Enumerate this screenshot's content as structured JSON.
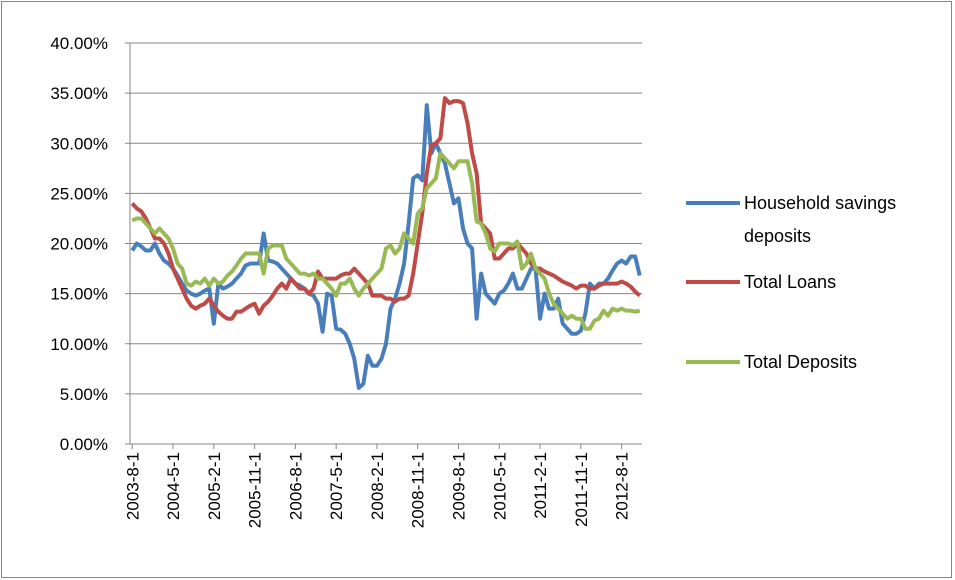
{
  "chart_data": {
    "type": "line",
    "categories": [
      "2003-8-1",
      null,
      null,
      null,
      null,
      null,
      null,
      null,
      null,
      "2004-5-1",
      null,
      null,
      null,
      null,
      null,
      null,
      null,
      null,
      "2005-2-1",
      null,
      null,
      null,
      null,
      null,
      null,
      null,
      null,
      "2005-11-1",
      null,
      null,
      null,
      null,
      null,
      null,
      null,
      null,
      "2006-8-1",
      null,
      null,
      null,
      null,
      null,
      null,
      null,
      null,
      "2007-5-1",
      null,
      null,
      null,
      null,
      null,
      null,
      null,
      null,
      "2008-2-1",
      null,
      null,
      null,
      null,
      null,
      null,
      null,
      null,
      "2008-11-1",
      null,
      null,
      null,
      null,
      null,
      null,
      null,
      null,
      "2009-8-1",
      null,
      null,
      null,
      null,
      null,
      null,
      null,
      null,
      "2010-5-1",
      null,
      null,
      null,
      null,
      null,
      null,
      null,
      null,
      "2011-2-1",
      null,
      null,
      null,
      null,
      null,
      null,
      null,
      null,
      "2011-11-1",
      null,
      null,
      null,
      null,
      null,
      null,
      null,
      null,
      "2012-8-1",
      null,
      null,
      null,
      null
    ],
    "series": [
      {
        "name": "Household savings deposits",
        "color": "#4a7ebb",
        "values": [
          19.3,
          20,
          19.7,
          19.3,
          19.3,
          20,
          19,
          18.3,
          18,
          17.5,
          16.8,
          16,
          15.3,
          15,
          14.8,
          15,
          15.3,
          15.5,
          12,
          16,
          15.5,
          15.7,
          16,
          16.5,
          17,
          17.8,
          18,
          18,
          18,
          21,
          18.3,
          18.2,
          18,
          17.5,
          17,
          16.5,
          16,
          15.8,
          15.5,
          15,
          14.8,
          14,
          11.2,
          15,
          14.8,
          11.5,
          11.4,
          11,
          10,
          8.5,
          5.6,
          6,
          8.8,
          7.8,
          7.8,
          8.5,
          10,
          13.5,
          14.5,
          16,
          18,
          22,
          26.5,
          26.8,
          26.3,
          33.8,
          29,
          30,
          29,
          28,
          26,
          24,
          24.5,
          21.5,
          20,
          19.5,
          12.5,
          17,
          15,
          14.5,
          14,
          15,
          15.3,
          16,
          17,
          15.5,
          15.5,
          16.5,
          17.5,
          17.5,
          12.5,
          15,
          13.5,
          13.5,
          14.5,
          12,
          11.5,
          11,
          11,
          11.3,
          13,
          16,
          15.5,
          16,
          16,
          16.5,
          17.3,
          18,
          18.3,
          18,
          18.7,
          18.7,
          16.8
        ]
      },
      {
        "name": "Total Loans",
        "color": "#be4b48",
        "values": [
          24,
          23.5,
          23.2,
          22.5,
          21.5,
          20.5,
          20.5,
          20,
          19,
          17.5,
          16.5,
          15.5,
          14.5,
          13.8,
          13.5,
          13.8,
          14,
          14.5,
          13.8,
          13.2,
          12.8,
          12.5,
          12.5,
          13.2,
          13.2,
          13.5,
          13.8,
          14,
          13,
          13.8,
          14.2,
          14.8,
          15.5,
          16,
          15.5,
          16.5,
          16,
          15.5,
          15.5,
          15,
          15.5,
          17.2,
          16.5,
          16.5,
          16.5,
          16.5,
          16.8,
          17,
          17,
          17.5,
          17,
          16.5,
          16,
          14.8,
          14.8,
          14.8,
          14.5,
          14.5,
          14.2,
          14.5,
          14.5,
          14.8,
          17,
          20,
          23,
          27,
          29.8,
          30,
          30.5,
          34.5,
          34,
          34.2,
          34.2,
          34,
          32,
          29,
          27,
          22,
          21.5,
          21,
          18.5,
          18.5,
          19,
          19.5,
          19.5,
          20,
          19.5,
          19,
          18,
          17.5,
          17.5,
          17.2,
          17,
          16.8,
          16.5,
          16.2,
          16,
          15.8,
          15.5,
          15.8,
          15.8,
          15.5,
          15.5,
          15.8,
          16,
          16,
          16,
          16,
          16.2,
          16,
          15.7,
          15.2,
          14.8
        ]
      },
      {
        "name": "Total Deposits",
        "color": "#98b954",
        "values": [
          22.3,
          22.5,
          22.5,
          22,
          21.5,
          21,
          21.5,
          21,
          20.5,
          19.5,
          18,
          17.5,
          16,
          15.8,
          16.2,
          16,
          16.5,
          15.8,
          16.5,
          16,
          16.2,
          16.8,
          17.2,
          17.8,
          18.5,
          19,
          19,
          19,
          19,
          17,
          19.5,
          19.8,
          19.8,
          19.8,
          18.5,
          18,
          17.5,
          17,
          17,
          16.8,
          17,
          16.5,
          16.5,
          16,
          15.5,
          14.8,
          16,
          16,
          16.5,
          15.5,
          14.8,
          15.5,
          16,
          16.5,
          17,
          17.5,
          19.5,
          19.8,
          19,
          19.5,
          21,
          20.5,
          20,
          23,
          23.5,
          25.5,
          26,
          26.5,
          29,
          28.5,
          28,
          27.5,
          28.2,
          28.2,
          28.2,
          26,
          22.2,
          22,
          21,
          19.5,
          19.2,
          20,
          20,
          20,
          19.8,
          20.2,
          17.5,
          18,
          19,
          17.5,
          17,
          16.5,
          15,
          14,
          13.5,
          13,
          12.5,
          12.8,
          12.5,
          12.5,
          11.5,
          11.5,
          12.3,
          12.5,
          13.3,
          12.8,
          13.5,
          13.3,
          13.5,
          13.3,
          13.3,
          13.2,
          13.3
        ]
      }
    ],
    "ylim": [
      0,
      40
    ],
    "yticks": [
      {
        "value": 0,
        "label": "0.00%"
      },
      {
        "value": 5,
        "label": "5.00%"
      },
      {
        "value": 10,
        "label": "10.00%"
      },
      {
        "value": 15,
        "label": "15.00%"
      },
      {
        "value": 20,
        "label": "20.00%"
      },
      {
        "value": 25,
        "label": "25.00%"
      },
      {
        "value": 30,
        "label": "30.00%"
      },
      {
        "value": 35,
        "label": "35.00%"
      },
      {
        "value": 40,
        "label": "40.00%"
      }
    ],
    "grid": true,
    "legend": "right"
  }
}
